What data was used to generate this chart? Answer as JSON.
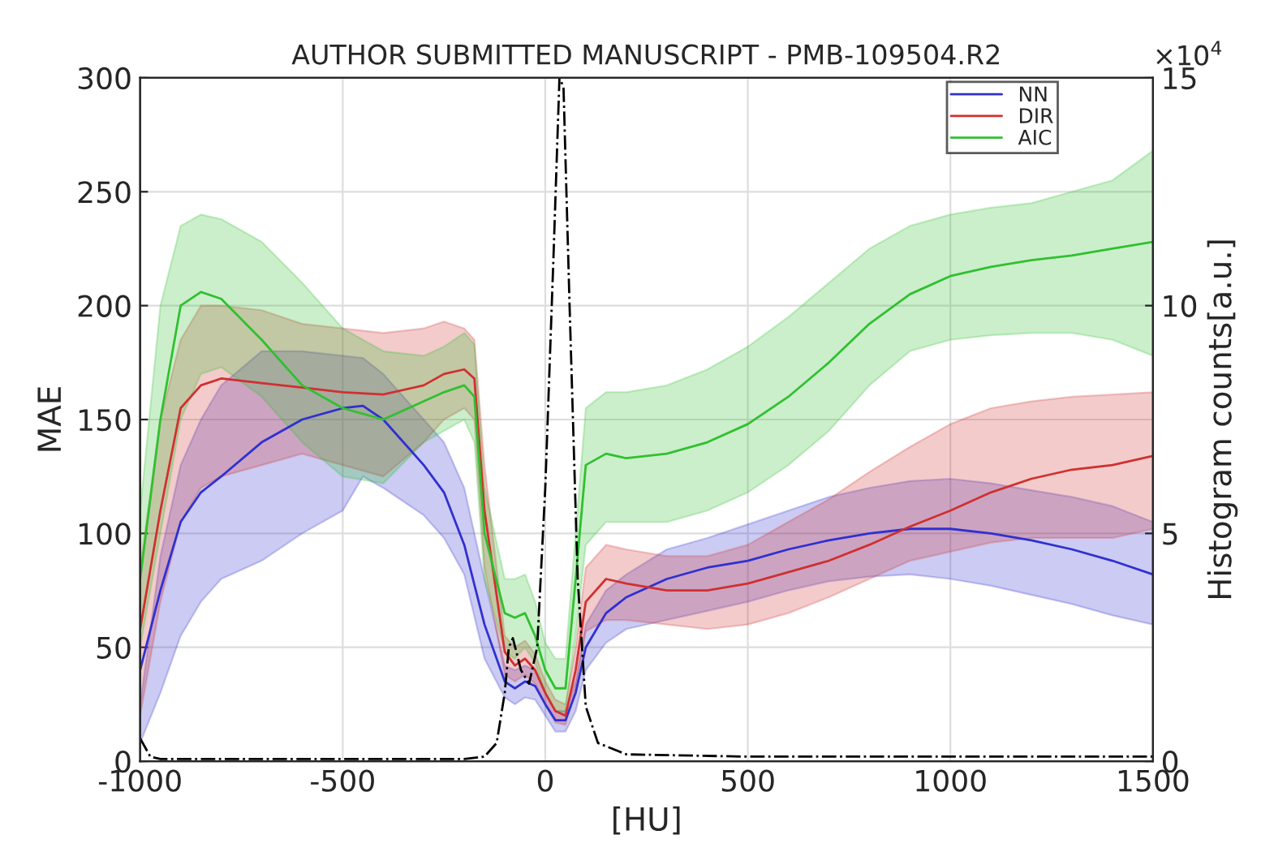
{
  "chart_data": {
    "type": "line",
    "title": "AUTHOR SUBMITTED MANUSCRIPT - PMB-109504.R2",
    "xlabel": "[HU]",
    "ylabel": "MAE",
    "y2label": "Histogram counts[a.u.]",
    "annotations": [
      "×10$^{4}$"
    ],
    "xlim": [
      -1000,
      1500
    ],
    "xticks": [
      -1000,
      -500,
      0,
      500,
      1000,
      1500
    ],
    "ylim": [
      0,
      300
    ],
    "yticks": [
      0,
      50,
      100,
      150,
      200,
      250,
      300
    ],
    "y2lim": [
      0,
      15
    ],
    "y2ticks": [
      0,
      5,
      10,
      15
    ],
    "grid": true,
    "legend": "top right",
    "line_style": "solid",
    "series": [
      {
        "name": "NN",
        "color": "#3030d0",
        "x": [
          -1000,
          -950,
          -900,
          -850,
          -800,
          -700,
          -600,
          -500,
          -450,
          -400,
          -300,
          -250,
          -200,
          -150,
          -100,
          -75,
          -50,
          -25,
          0,
          25,
          50,
          75,
          100,
          150,
          200,
          300,
          400,
          500,
          600,
          700,
          800,
          900,
          1000,
          1100,
          1200,
          1300,
          1400,
          1500
        ],
        "values": [
          40,
          75,
          105,
          118,
          125,
          140,
          150,
          155,
          156,
          150,
          130,
          118,
          95,
          60,
          35,
          32,
          35,
          33,
          25,
          18,
          18,
          30,
          50,
          65,
          72,
          80,
          85,
          88,
          93,
          97,
          100,
          102,
          102,
          100,
          97,
          93,
          88,
          82
        ],
        "lower": [
          8,
          30,
          55,
          70,
          80,
          88,
          100,
          110,
          125,
          120,
          108,
          98,
          82,
          45,
          28,
          25,
          28,
          27,
          20,
          13,
          13,
          22,
          40,
          52,
          58,
          62,
          66,
          70,
          75,
          79,
          81,
          82,
          80,
          77,
          73,
          69,
          64,
          60
        ],
        "upper": [
          25,
          90,
          130,
          150,
          165,
          180,
          180,
          178,
          177,
          170,
          150,
          140,
          120,
          80,
          42,
          40,
          42,
          40,
          30,
          22,
          22,
          35,
          60,
          75,
          82,
          93,
          98,
          104,
          110,
          116,
          120,
          123,
          124,
          122,
          119,
          116,
          112,
          105
        ]
      },
      {
        "name": "DIR",
        "color": "#d03030",
        "x": [
          -1000,
          -950,
          -900,
          -850,
          -800,
          -700,
          -600,
          -500,
          -400,
          -300,
          -250,
          -200,
          -175,
          -150,
          -100,
          -75,
          -50,
          -25,
          0,
          25,
          50,
          75,
          100,
          150,
          200,
          300,
          400,
          500,
          600,
          700,
          800,
          900,
          1000,
          1100,
          1200,
          1300,
          1400,
          1500
        ],
        "values": [
          58,
          110,
          155,
          165,
          168,
          166,
          164,
          162,
          161,
          165,
          170,
          172,
          168,
          110,
          48,
          42,
          45,
          40,
          30,
          22,
          20,
          40,
          70,
          80,
          78,
          75,
          75,
          78,
          83,
          88,
          95,
          103,
          110,
          118,
          124,
          128,
          130,
          134
        ],
        "lower": [
          20,
          70,
          105,
          120,
          125,
          130,
          135,
          130,
          125,
          140,
          150,
          155,
          150,
          85,
          38,
          35,
          38,
          34,
          25,
          17,
          16,
          32,
          57,
          62,
          62,
          60,
          58,
          60,
          65,
          72,
          80,
          88,
          92,
          96,
          98,
          98,
          98,
          102
        ],
        "upper": [
          85,
          150,
          185,
          200,
          200,
          198,
          192,
          190,
          188,
          190,
          193,
          190,
          185,
          130,
          55,
          50,
          53,
          47,
          35,
          27,
          25,
          50,
          85,
          95,
          93,
          90,
          90,
          95,
          105,
          115,
          127,
          138,
          148,
          155,
          158,
          160,
          161,
          162
        ]
      },
      {
        "name": "AIC",
        "color": "#30c030",
        "x": [
          -1000,
          -950,
          -900,
          -850,
          -800,
          -700,
          -600,
          -500,
          -400,
          -300,
          -250,
          -200,
          -175,
          -150,
          -100,
          -75,
          -50,
          -25,
          0,
          25,
          50,
          75,
          100,
          150,
          200,
          300,
          400,
          500,
          600,
          700,
          800,
          900,
          1000,
          1100,
          1200,
          1300,
          1400,
          1500
        ],
        "values": [
          80,
          150,
          200,
          206,
          203,
          185,
          165,
          155,
          150,
          158,
          162,
          165,
          160,
          100,
          65,
          63,
          65,
          55,
          40,
          32,
          32,
          80,
          130,
          135,
          133,
          135,
          140,
          148,
          160,
          175,
          192,
          205,
          213,
          217,
          220,
          222,
          225,
          228
        ],
        "lower": [
          50,
          100,
          150,
          170,
          173,
          160,
          140,
          125,
          122,
          140,
          145,
          150,
          140,
          80,
          48,
          45,
          50,
          43,
          30,
          22,
          22,
          55,
          95,
          105,
          105,
          105,
          110,
          118,
          130,
          145,
          165,
          180,
          185,
          187,
          188,
          188,
          185,
          178
        ],
        "upper": [
          110,
          200,
          235,
          240,
          238,
          228,
          210,
          190,
          180,
          178,
          182,
          188,
          183,
          120,
          80,
          80,
          82,
          70,
          52,
          45,
          45,
          100,
          155,
          162,
          162,
          165,
          172,
          182,
          195,
          210,
          225,
          235,
          240,
          243,
          245,
          250,
          255,
          268
        ]
      },
      {
        "color": "#000000",
        "axis": "y2",
        "line_style": "dashed",
        "x": [
          -1000,
          -975,
          -950,
          -900,
          -500,
          -200,
          -150,
          -120,
          -100,
          -90,
          -80,
          -60,
          -40,
          -20,
          0,
          20,
          35,
          45,
          60,
          80,
          100,
          130,
          200,
          500,
          1000,
          1500
        ],
        "values": [
          0.5,
          0.1,
          0.05,
          0.05,
          0.05,
          0.05,
          0.1,
          0.4,
          1.5,
          2.5,
          2.7,
          2.0,
          1.7,
          2.5,
          6,
          11,
          15,
          14.8,
          10,
          4,
          1.2,
          0.4,
          0.15,
          0.1,
          0.1,
          0.1
        ]
      }
    ]
  }
}
